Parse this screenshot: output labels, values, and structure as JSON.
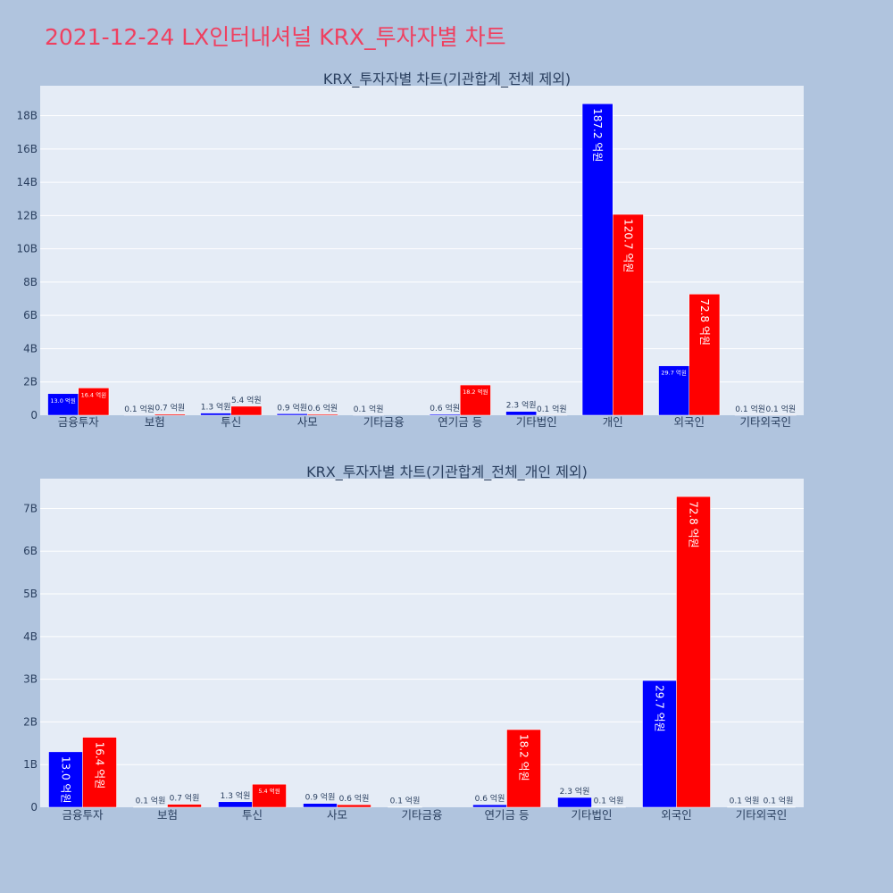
{
  "page_title": "2021-12-24 LX인터내셔널 KRX_투자자별 차트",
  "colors": {
    "buy": "#0000ff",
    "sell": "#ff0000",
    "plot_bg": "#e5ecf6",
    "paper_bg": "#b0c4de",
    "title": "#ef4060",
    "text": "#2a3f5f",
    "grid": "#ffffff"
  },
  "chart_data": [
    {
      "type": "bar",
      "title": "KRX_투자자별 차트(기관합계_전체 제외)",
      "categories": [
        "금융투자",
        "보험",
        "투신",
        "사모",
        "기타금융",
        "연기금 등",
        "기타법인",
        "개인",
        "외국인",
        "기타외국인"
      ],
      "series": [
        {
          "color": "#0000ff",
          "values": [
            1.3,
            0.01,
            0.13,
            0.09,
            0.01,
            0.06,
            0.23,
            18.72,
            2.97,
            0.01
          ],
          "labels": [
            "13.0 억원",
            "0.1 억원",
            "1.3 억원",
            "0.9 억원",
            "0.1 억원",
            "0.6 억원",
            "2.3 억원",
            "187.2 억원",
            "29.7 억원",
            "0.1 억원"
          ]
        },
        {
          "color": "#ff0000",
          "values": [
            1.64,
            0.07,
            0.54,
            0.06,
            0,
            1.82,
            0.01,
            12.07,
            7.28,
            0.01
          ],
          "labels": [
            "16.4 억원",
            "0.7 억원",
            "5.4 억원",
            "0.6 억원",
            "",
            "18.2 억원",
            "0.1 억원",
            "120.7 억원",
            "72.8 억원",
            "0.1 억원"
          ]
        }
      ],
      "yticks": [
        "0",
        "2B",
        "4B",
        "6B",
        "8B",
        "10B",
        "12B",
        "14B",
        "16B",
        "18B"
      ],
      "yunit": "B",
      "ylim": [
        0,
        19.8
      ],
      "grid": true
    },
    {
      "type": "bar",
      "title": "KRX_투자자별 차트(기관합계_전체_개인 제외)",
      "categories": [
        "금융투자",
        "보험",
        "투신",
        "사모",
        "기타금융",
        "연기금 등",
        "기타법인",
        "외국인",
        "기타외국인"
      ],
      "series": [
        {
          "color": "#0000ff",
          "values": [
            1.3,
            0.01,
            0.13,
            0.09,
            0.01,
            0.06,
            0.23,
            2.97,
            0.01
          ],
          "labels": [
            "13.0 억원",
            "0.1 억원",
            "1.3 억원",
            "0.9 억원",
            "0.1 억원",
            "0.6 억원",
            "2.3 억원",
            "29.7 억원",
            "0.1 억원"
          ]
        },
        {
          "color": "#ff0000",
          "values": [
            1.64,
            0.07,
            0.54,
            0.06,
            0,
            1.82,
            0.01,
            7.28,
            0.01
          ],
          "labels": [
            "16.4 억원",
            "0.7 억원",
            "5.4 억원",
            "0.6 억원",
            "",
            "18.2 억원",
            "0.1 억원",
            "72.8 억원",
            "0.1 억원"
          ]
        }
      ],
      "yticks": [
        "0",
        "1B",
        "2B",
        "3B",
        "4B",
        "5B",
        "6B",
        "7B"
      ],
      "yunit": "B",
      "ylim": [
        0,
        7.7
      ],
      "grid": true
    }
  ]
}
